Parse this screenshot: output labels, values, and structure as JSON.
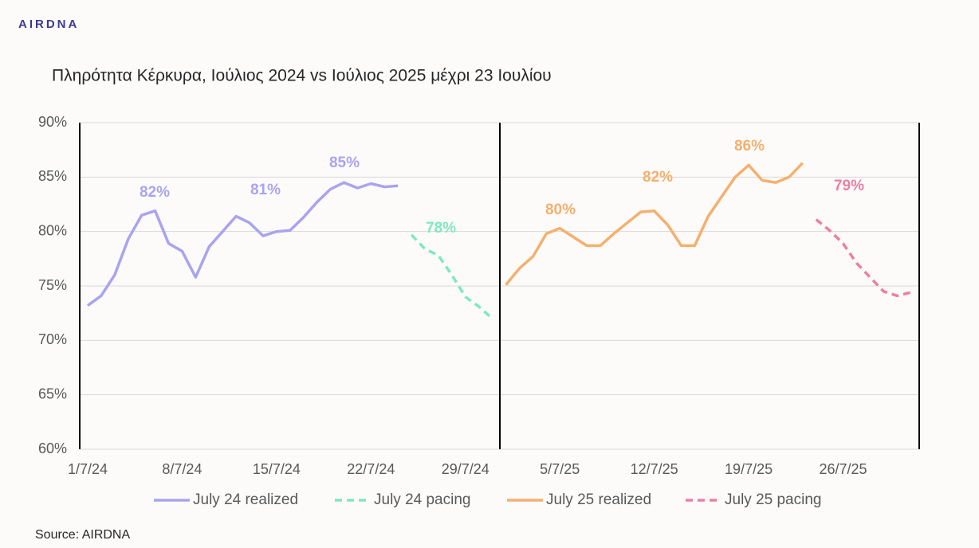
{
  "brand": "AIRDNA",
  "source": "Source: AIRDNA",
  "chart_data": {
    "type": "line",
    "title": "Πληρότητα Κέρκυρα, Ιούλιος 2024 vs Ιούλιος 2025 μέχρι 23 Ιουλίου",
    "categories": [
      "1/7/24",
      null,
      null,
      null,
      null,
      null,
      null,
      "8/7/24",
      null,
      null,
      null,
      null,
      null,
      null,
      "15/7/24",
      null,
      null,
      null,
      null,
      null,
      null,
      "22/7/24",
      null,
      null,
      null,
      null,
      null,
      null,
      "29/7/24",
      null,
      null,
      null,
      null,
      null,
      null,
      "5/7/25",
      null,
      null,
      null,
      null,
      null,
      null,
      "12/7/25",
      null,
      null,
      null,
      null,
      null,
      null,
      "19/7/25",
      null,
      null,
      null,
      null,
      null,
      null,
      "26/7/25",
      null,
      null,
      null,
      null,
      null
    ],
    "series": [
      {
        "name": "July 24 realized",
        "color": "#a9a4f0",
        "dashed": false,
        "values": [
          73.2,
          74.1,
          76.0,
          79.3,
          81.5,
          81.9,
          78.9,
          78.2,
          75.8,
          78.6,
          80.0,
          81.4,
          80.8,
          79.6,
          80.0,
          80.1,
          81.3,
          82.7,
          83.9,
          84.5,
          84.0,
          84.4,
          84.1,
          84.2,
          null,
          null,
          null,
          null,
          null,
          null,
          null,
          null,
          null,
          null,
          null,
          null,
          null,
          null,
          null,
          null,
          null,
          null,
          null,
          null,
          null,
          null,
          null,
          null,
          null,
          null,
          null,
          null,
          null,
          null,
          null,
          null,
          null,
          null,
          null,
          null,
          null,
          null
        ]
      },
      {
        "name": "July 24 pacing",
        "color": "#7ee8c2",
        "dashed": true,
        "values": [
          null,
          null,
          null,
          null,
          null,
          null,
          null,
          null,
          null,
          null,
          null,
          null,
          null,
          null,
          null,
          null,
          null,
          null,
          null,
          null,
          null,
          null,
          null,
          null,
          79.7,
          78.4,
          77.8,
          76.0,
          74.0,
          73.1,
          72.0,
          null,
          null,
          null,
          null,
          null,
          null,
          null,
          null,
          null,
          null,
          null,
          null,
          null,
          null,
          null,
          null,
          null,
          null,
          null,
          null,
          null,
          null,
          null,
          null,
          null,
          null,
          null,
          null,
          null,
          null,
          null
        ]
      },
      {
        "name": "July 25 realized",
        "color": "#f5b06e",
        "dashed": false,
        "values": [
          null,
          null,
          null,
          null,
          null,
          null,
          null,
          null,
          null,
          null,
          null,
          null,
          null,
          null,
          null,
          null,
          null,
          null,
          null,
          null,
          null,
          null,
          null,
          null,
          null,
          null,
          null,
          null,
          null,
          null,
          null,
          75.1,
          76.6,
          77.7,
          79.8,
          80.3,
          79.5,
          78.7,
          78.7,
          79.8,
          80.8,
          81.8,
          81.9,
          80.6,
          78.7,
          78.7,
          81.4,
          83.2,
          85.0,
          86.1,
          84.7,
          84.5,
          85.0,
          86.3,
          null,
          null,
          null,
          null,
          null,
          null,
          null,
          null
        ]
      },
      {
        "name": "July 25 pacing",
        "color": "#ec7fa5",
        "dashed": true,
        "values": [
          null,
          null,
          null,
          null,
          null,
          null,
          null,
          null,
          null,
          null,
          null,
          null,
          null,
          null,
          null,
          null,
          null,
          null,
          null,
          null,
          null,
          null,
          null,
          null,
          null,
          null,
          null,
          null,
          null,
          null,
          null,
          null,
          null,
          null,
          null,
          null,
          null,
          null,
          null,
          null,
          null,
          null,
          null,
          null,
          null,
          null,
          null,
          null,
          null,
          null,
          null,
          null,
          null,
          null,
          81.1,
          80.1,
          78.9,
          77.1,
          75.8,
          74.5,
          74.1,
          74.4
        ]
      }
    ],
    "annotations": [
      "82%",
      "81%",
      "85%",
      "78%",
      "80%",
      "82%",
      "86%",
      "79%"
    ],
    "ylim": [
      60,
      90
    ],
    "yticks": [
      {
        "value": 60,
        "label": "60%"
      },
      {
        "value": 65,
        "label": "65%"
      },
      {
        "value": 70,
        "label": "70%"
      },
      {
        "value": 75,
        "label": "75%"
      },
      {
        "value": 80,
        "label": "80%"
      },
      {
        "value": 85,
        "label": "85%"
      },
      {
        "value": 90,
        "label": "90%"
      }
    ],
    "grid": true,
    "legend": "bottom"
  }
}
